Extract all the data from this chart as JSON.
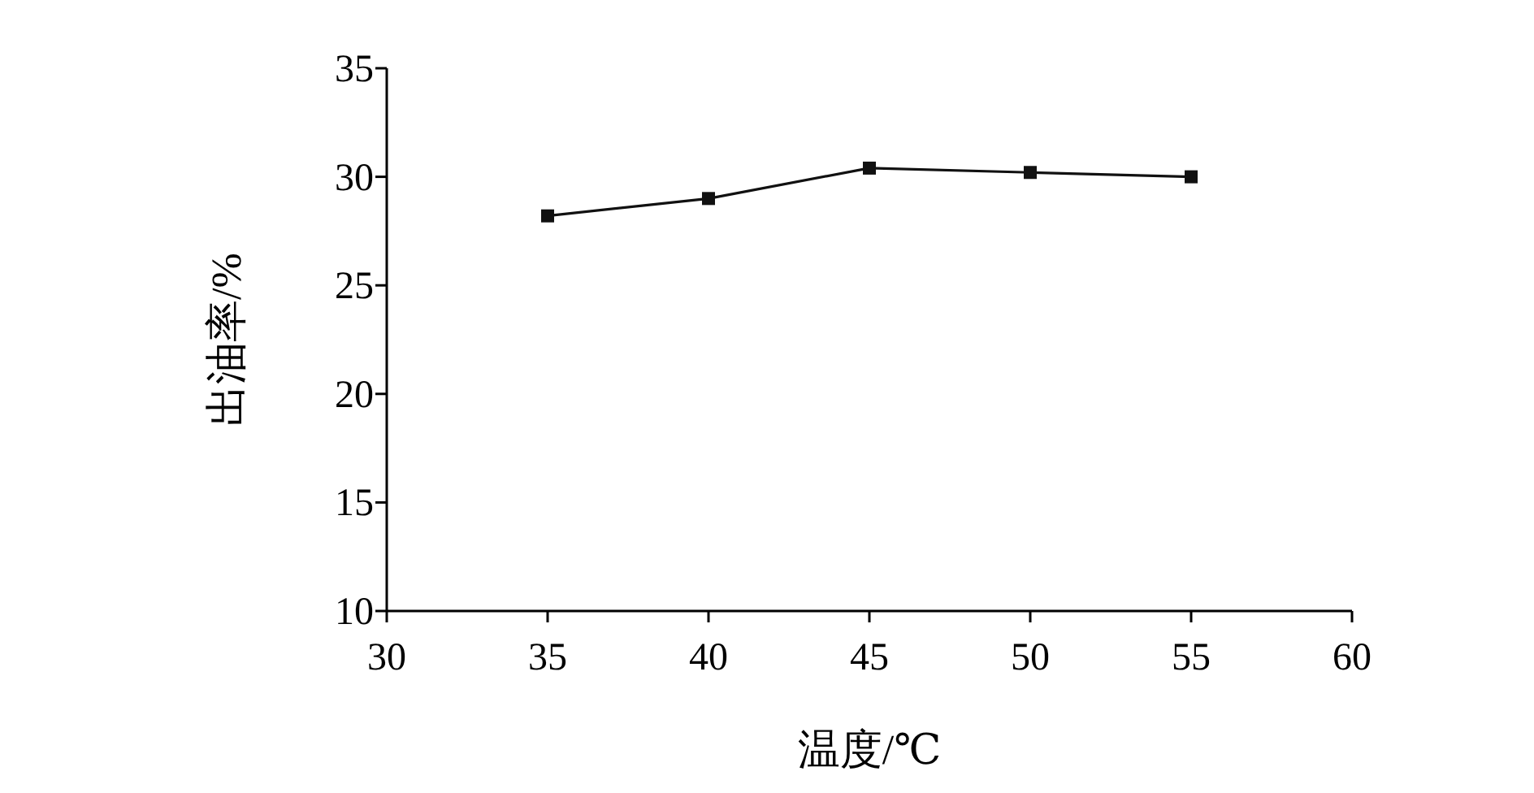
{
  "chart_data": {
    "type": "line",
    "xlabel": "温度/℃",
    "ylabel": "出油率/%",
    "x": [
      35,
      40,
      45,
      50,
      55
    ],
    "values": [
      28.2,
      29.0,
      30.4,
      30.2,
      30.0
    ],
    "color": "#111111",
    "marker": "square",
    "line_style": "solid",
    "xlim": [
      30,
      60
    ],
    "ylim": [
      10,
      35
    ],
    "xticks": [
      30,
      35,
      40,
      45,
      50,
      55,
      60
    ],
    "yticks": [
      10,
      15,
      20,
      25,
      30,
      35
    ]
  }
}
